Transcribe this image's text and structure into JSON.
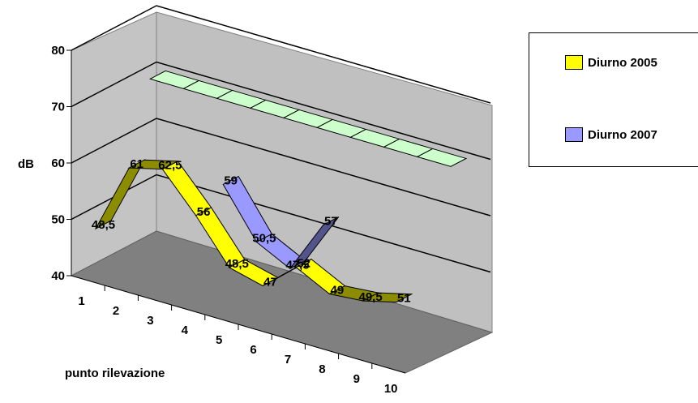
{
  "chart_data": {
    "type": "line",
    "style": "3d",
    "title": "",
    "xlabel": "punto rilevazione",
    "ylabel": "dB",
    "categories": [
      "1",
      "2",
      "3",
      "4",
      "5",
      "6",
      "7",
      "8",
      "9",
      "10"
    ],
    "ylim": [
      40,
      80
    ],
    "yticks": [
      "40",
      "50",
      "60",
      "70",
      "80"
    ],
    "grid": true,
    "legend_position": "right",
    "series": [
      {
        "name": "Diurno 2005",
        "color": "#ffff00",
        "values": [
          48.5,
          61,
          62.5,
          56,
          48.5,
          47,
          52,
          49,
          49.5,
          51
        ],
        "labels": [
          "48,5",
          "61",
          "62,5",
          "56",
          "48,5",
          "47",
          "52",
          "49",
          "49,5",
          "51"
        ]
      },
      {
        "name": "Diurno 2007",
        "color": "#9999ff",
        "values": [
          null,
          null,
          null,
          59,
          50.5,
          47.5,
          57,
          null,
          null,
          null
        ],
        "labels": [
          "",
          "",
          "",
          "59",
          "50,5",
          "47,5",
          "57",
          "",
          "",
          ""
        ]
      },
      {
        "name": "",
        "color": "#ccffcc",
        "values": [
          70,
          70,
          70,
          70,
          70,
          70,
          70,
          70,
          70,
          70
        ],
        "labels": [
          "",
          "",
          "",
          "",
          "",
          "",
          "",
          "",
          "",
          ""
        ]
      }
    ]
  }
}
